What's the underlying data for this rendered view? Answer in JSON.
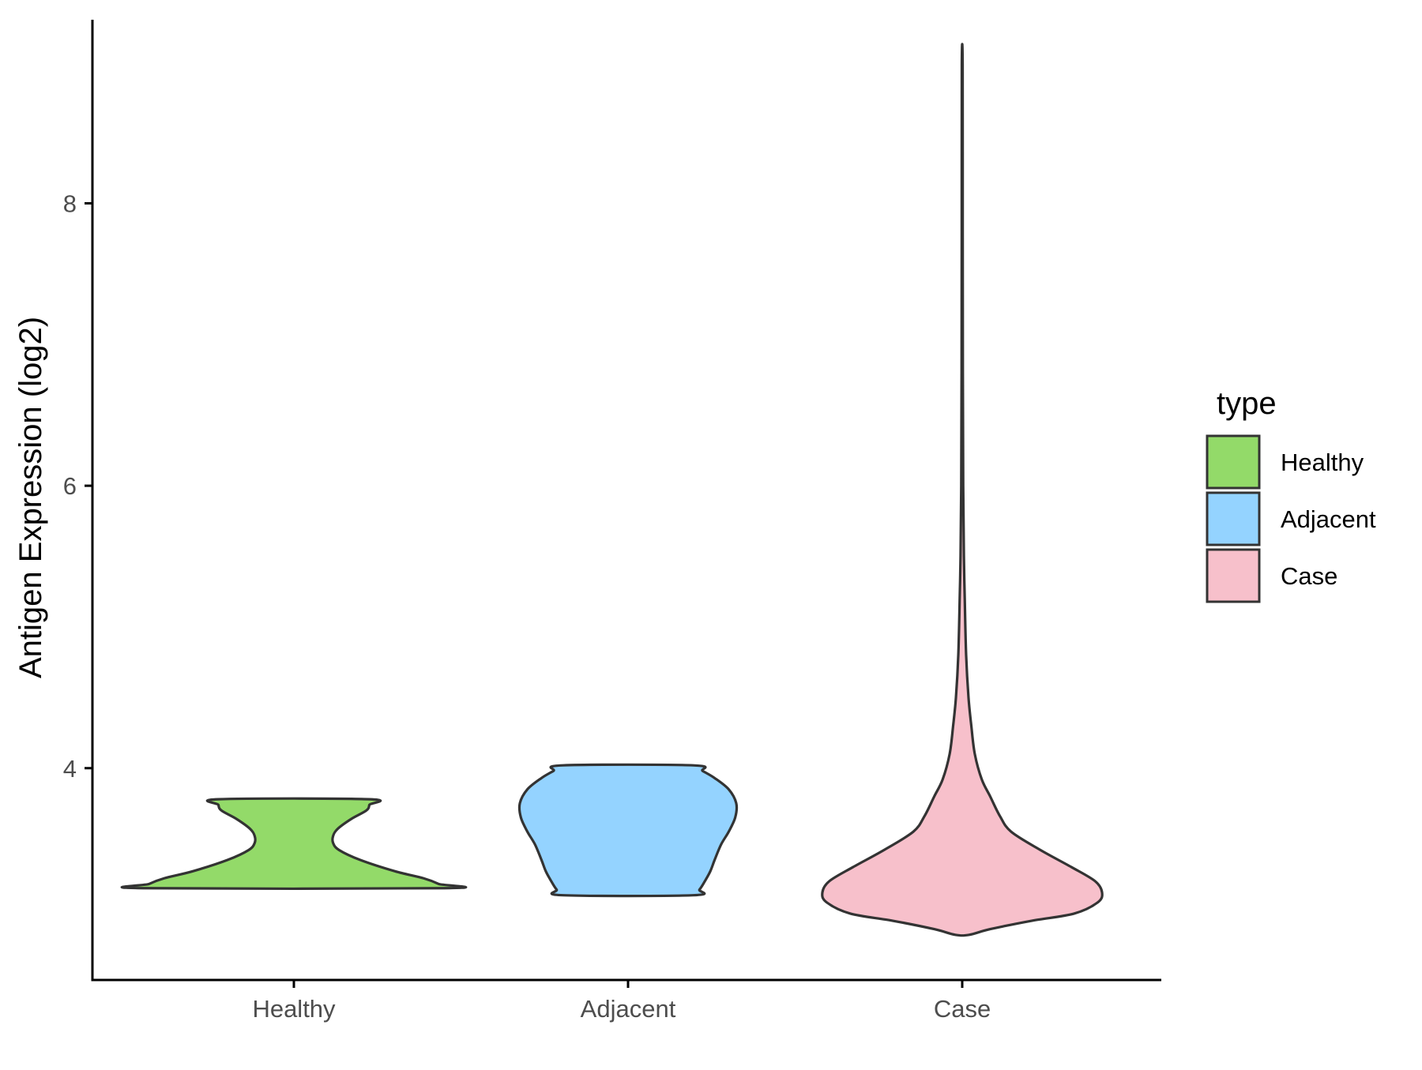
{
  "chart_data": {
    "type": "violin",
    "categories": [
      "Healthy",
      "Adjacent",
      "Case"
    ],
    "xlabel": "",
    "ylabel": "Antigen Expression (log2)",
    "ylim": [
      2.5,
      9.3
    ],
    "yticks": [
      4,
      6,
      8
    ],
    "grid": false,
    "legend": {
      "title": "type",
      "placement": "right",
      "entries": [
        "Healthy",
        "Adjacent",
        "Case"
      ]
    },
    "colors": {
      "Healthy": "#93DA69",
      "Adjacent": "#94D3FF",
      "Case": "#F7C0CB",
      "outline": "#333333"
    },
    "series": [
      {
        "name": "Healthy",
        "min": 3.15,
        "max": 3.78,
        "density_profile": [
          [
            3.15,
            1.0
          ],
          [
            3.18,
            0.96
          ],
          [
            3.22,
            0.86
          ],
          [
            3.27,
            0.67
          ],
          [
            3.35,
            0.44
          ],
          [
            3.42,
            0.3
          ],
          [
            3.47,
            0.26
          ],
          [
            3.52,
            0.26
          ],
          [
            3.57,
            0.29
          ],
          [
            3.64,
            0.38
          ],
          [
            3.7,
            0.48
          ],
          [
            3.74,
            0.5
          ],
          [
            3.78,
            0.5
          ]
        ]
      },
      {
        "name": "Adjacent",
        "min": 3.1,
        "max": 4.02,
        "density_profile": [
          [
            3.1,
            0.6
          ],
          [
            3.14,
            0.66
          ],
          [
            3.2,
            0.71
          ],
          [
            3.27,
            0.76
          ],
          [
            3.35,
            0.8
          ],
          [
            3.46,
            0.86
          ],
          [
            3.55,
            0.93
          ],
          [
            3.65,
            0.99
          ],
          [
            3.75,
            1.0
          ],
          [
            3.85,
            0.93
          ],
          [
            3.93,
            0.8
          ],
          [
            3.98,
            0.69
          ],
          [
            4.02,
            0.6
          ]
        ]
      },
      {
        "name": "Case",
        "min": 2.82,
        "max": 8.98,
        "density_profile": [
          [
            2.82,
            0.05
          ],
          [
            2.86,
            0.2
          ],
          [
            2.92,
            0.5
          ],
          [
            2.97,
            0.8
          ],
          [
            3.05,
            0.97
          ],
          [
            3.12,
            1.0
          ],
          [
            3.2,
            0.95
          ],
          [
            3.3,
            0.78
          ],
          [
            3.42,
            0.56
          ],
          [
            3.55,
            0.35
          ],
          [
            3.66,
            0.27
          ],
          [
            3.8,
            0.2
          ],
          [
            3.92,
            0.14
          ],
          [
            4.1,
            0.09
          ],
          [
            4.3,
            0.065
          ],
          [
            4.5,
            0.045
          ],
          [
            4.8,
            0.028
          ],
          [
            5.2,
            0.018
          ],
          [
            5.5,
            0.012
          ],
          [
            6.0,
            0.007
          ],
          [
            6.8,
            0.0045
          ],
          [
            7.8,
            0.0035
          ],
          [
            8.98,
            0.003
          ]
        ]
      }
    ]
  }
}
